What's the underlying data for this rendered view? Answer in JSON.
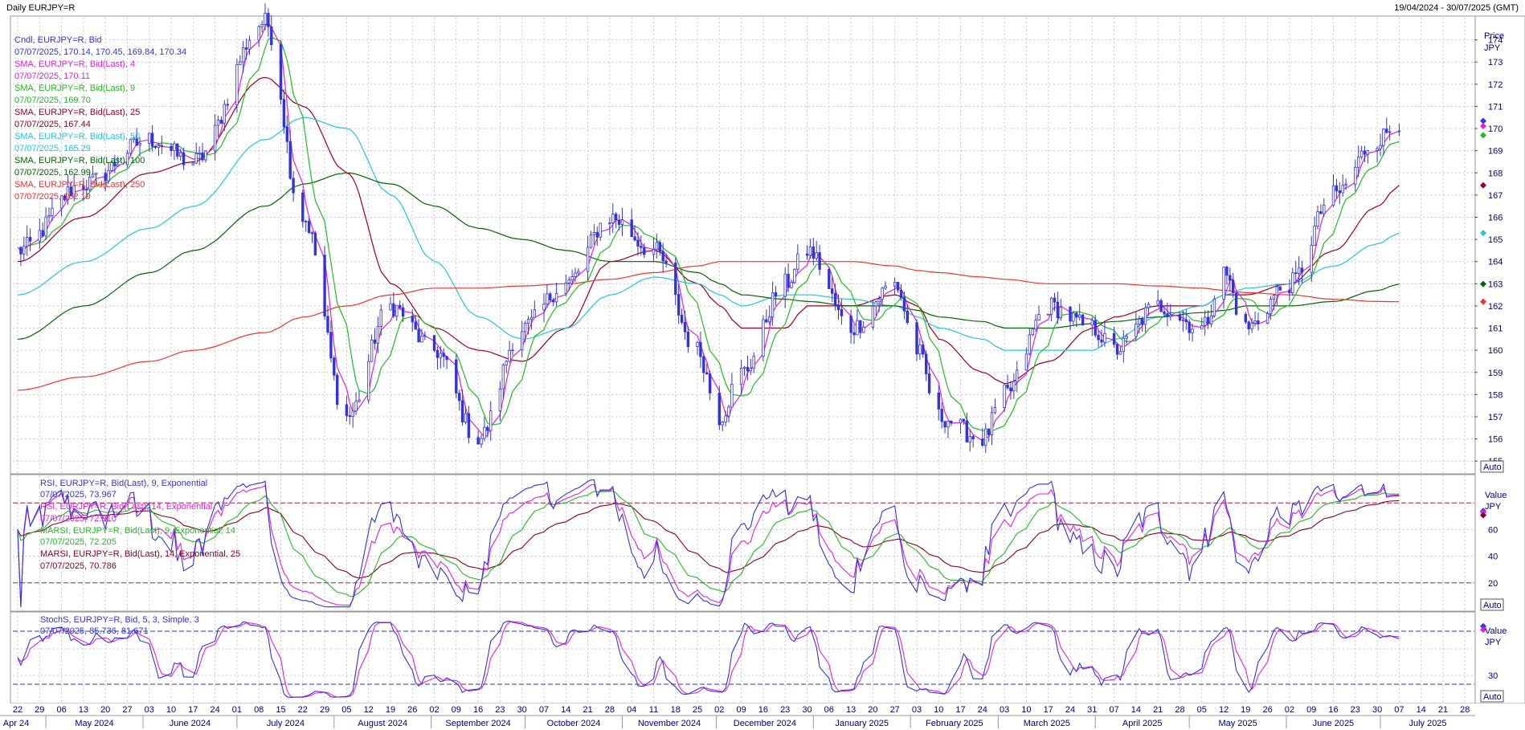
{
  "header": {
    "title": "Daily EURJPY=R",
    "date_range": "19/04/2024 - 30/07/2025 (GMT)"
  },
  "colors": {
    "candle": "#3333dd",
    "sma4": "#e020e0",
    "sma9": "#22bb22",
    "sma25": "#990022",
    "sma50": "#22c8d8",
    "sma100": "#006600",
    "sma250": "#ee3333",
    "rsi9": "#3333dd",
    "rsi14": "#e020e0",
    "marsi9": "#22bb22",
    "marsi25": "#880022",
    "stoch_k": "#3333dd",
    "stoch_d": "#e020e0",
    "grid": "#c8c8c8",
    "axis_text": "#000080"
  },
  "price_panel": {
    "axis_title": "Price",
    "axis_unit": "JPY",
    "auto_label": "Auto",
    "legend": [
      {
        "label": "Cndl, EURJPY=R, Bid",
        "value": "07/07/2025, 170.14, 170.45, 169.84, 170.34",
        "color": "#3333dd"
      },
      {
        "label": "SMA, EURJPY=R, Bid(Last), 4",
        "value": "07/07/2025, 170.11",
        "color": "#e020e0"
      },
      {
        "label": "SMA, EURJPY=R, Bid(Last), 9",
        "value": "07/07/2025, 169.70",
        "color": "#22bb22"
      },
      {
        "label": "SMA, EURJPY=R, Bid(Last), 25",
        "value": "07/07/2025, 167.44",
        "color": "#990022"
      },
      {
        "label": "SMA, EURJPY=R, Bid(Last), 50",
        "value": "07/07/2025, 165.29",
        "color": "#22c8d8"
      },
      {
        "label": "SMA, EURJPY=R, Bid(Last), 100",
        "value": "07/07/2025, 162.99",
        "color": "#006600"
      },
      {
        "label": "SMA, EURJPY=R, Bid(Last), 250",
        "value": "07/07/2025, 162.19",
        "color": "#ee3333"
      }
    ],
    "y_ticks": [
      155,
      156,
      157,
      158,
      159,
      160,
      161,
      162,
      163,
      164,
      165,
      166,
      167,
      168,
      169,
      170,
      171,
      172,
      173,
      174
    ]
  },
  "rsi_panel": {
    "axis_title": "Value",
    "axis_unit": "JPY",
    "auto_label": "Auto",
    "legend": [
      {
        "label": "RSI, EURJPY=R, Bid(Last), 9, Exponential",
        "value": "07/07/2025, 73.967",
        "color": "#3333dd"
      },
      {
        "label": "RSI, EURJPY=R, Bid(Last), 14, Exponential",
        "value": "07/07/2025, 72.910",
        "color": "#e020e0"
      },
      {
        "label": "MARSI, EURJPY=R, Bid(Last), 9, Exponential, 14",
        "value": "07/07/2025, 72.205",
        "color": "#22bb22"
      },
      {
        "label": "MARSI, EURJPY=R, Bid(Last), 14, Exponential, 25",
        "value": "07/07/2025, 70.786",
        "color": "#880022"
      }
    ],
    "y_ticks": [
      20,
      40,
      60
    ],
    "levels": [
      20,
      80
    ]
  },
  "stoch_panel": {
    "axis_title": "Value",
    "axis_unit": "JPY",
    "auto_label": "Auto",
    "legend": [
      {
        "label": "StochS, EURJPY=R, Bid, 5, 3, Simple, 3",
        "value": "07/07/2025, 85.736, 81.671",
        "color": "#3333dd"
      }
    ],
    "y_ticks": [
      30
    ],
    "levels": [
      20,
      80
    ]
  },
  "x_axis": {
    "day_ticks": [
      "22",
      "29",
      "06",
      "13",
      "20",
      "27",
      "03",
      "10",
      "17",
      "24",
      "01",
      "08",
      "15",
      "22",
      "29",
      "05",
      "12",
      "19",
      "26",
      "02",
      "09",
      "16",
      "23",
      "30",
      "07",
      "14",
      "21",
      "28",
      "04",
      "11",
      "18",
      "25",
      "02",
      "09",
      "16",
      "23",
      "30",
      "06",
      "13",
      "20",
      "27",
      "03",
      "10",
      "17",
      "24",
      "03",
      "10",
      "17",
      "24",
      "31",
      "07",
      "14",
      "21",
      "28",
      "05",
      "12",
      "19",
      "26",
      "02",
      "09",
      "16",
      "23",
      "30",
      "07",
      "14",
      "21",
      "28"
    ],
    "month_labels": [
      "Apr 24",
      "May 2024",
      "June 2024",
      "July 2024",
      "August 2024",
      "September 2024",
      "October 2024",
      "November 2024",
      "December 2024",
      "January 2025",
      "February 2025",
      "March 2025",
      "April 2025",
      "May 2025",
      "June 2025",
      "July 2025"
    ]
  },
  "chart_data": {
    "type": "line",
    "title": "Daily EURJPY=R",
    "ylabel": "Price",
    "ylim": [
      154.5,
      175
    ],
    "note_series_anchor_dates": [
      "2024-04-22",
      "2024-05-13",
      "2024-06-03",
      "2024-06-17",
      "2024-07-10",
      "2024-07-22",
      "2024-08-05",
      "2024-08-19",
      "2024-09-02",
      "2024-09-16",
      "2024-09-30",
      "2024-10-14",
      "2024-10-28",
      "2024-11-11",
      "2024-11-25",
      "2024-12-02",
      "2024-12-09",
      "2024-12-23",
      "2024-12-30",
      "2025-01-13",
      "2025-01-27",
      "2025-02-03",
      "2025-02-10",
      "2025-02-24",
      "2025-03-03",
      "2025-03-17",
      "2025-03-31",
      "2025-04-07",
      "2025-04-21",
      "2025-05-05",
      "2025-05-12",
      "2025-05-19",
      "2025-06-02",
      "2025-06-16",
      "2025-06-30",
      "2025-07-07"
    ],
    "series": [
      {
        "name": "Cndl, EURJPY=R, Bid",
        "values": [
          164.5,
          167.5,
          169.5,
          168.5,
          174.8,
          166,
          157,
          162,
          160,
          156,
          161,
          163,
          166,
          164.5,
          160,
          157,
          159,
          163,
          164.5,
          161,
          163,
          160,
          157,
          156,
          158,
          162,
          161,
          160,
          162,
          161,
          163.5,
          161,
          163,
          167,
          169.5,
          170.34
        ]
      },
      {
        "name": "SMA, EURJPY=R, Bid(Last), 25",
        "values": [
          164,
          166,
          168,
          168.5,
          172.3,
          171,
          168,
          163,
          161,
          160,
          159.5,
          161,
          164,
          164.5,
          163,
          162,
          161,
          161,
          162,
          162,
          162.5,
          162,
          160.5,
          159,
          158.5,
          159.5,
          161,
          161.5,
          162,
          162,
          162.5,
          162.5,
          163,
          164.5,
          166.5,
          167.44
        ]
      },
      {
        "name": "SMA, EURJPY=R, Bid(Last), 50",
        "values": [
          162.5,
          164,
          165.5,
          166.5,
          169.5,
          170.5,
          170,
          167,
          164,
          161.5,
          160.5,
          161,
          162.5,
          163.3,
          163,
          162.5,
          162,
          162.5,
          162.5,
          162.3,
          162,
          161.5,
          161,
          160.5,
          160,
          160,
          160,
          160.5,
          161.5,
          162,
          162.5,
          162.8,
          163,
          163.8,
          164.8,
          165.29
        ]
      },
      {
        "name": "SMA, EURJPY=R, Bid(Last), 100",
        "values": [
          160.5,
          162,
          163.5,
          164.5,
          166.5,
          167.5,
          168,
          167.5,
          166.5,
          165.5,
          165,
          164.5,
          164,
          164,
          163.5,
          163,
          162.5,
          162.3,
          162.2,
          162,
          162,
          161.8,
          161.5,
          161.3,
          161,
          161,
          161.2,
          161.3,
          161.5,
          161.7,
          161.8,
          162,
          162,
          162.2,
          162.7,
          162.99
        ]
      },
      {
        "name": "SMA, EURJPY=R, Bid(Last), 250",
        "values": [
          158.2,
          158.8,
          159.5,
          160,
          160.8,
          161.5,
          162,
          162.5,
          162.8,
          162.8,
          162.9,
          163,
          163.2,
          163.5,
          163.8,
          164,
          164,
          164,
          164,
          164,
          163.8,
          163.6,
          163.5,
          163.3,
          163.2,
          163,
          163,
          163,
          162.9,
          162.8,
          162.7,
          162.6,
          162.5,
          162.3,
          162.2,
          162.19
        ]
      }
    ]
  }
}
